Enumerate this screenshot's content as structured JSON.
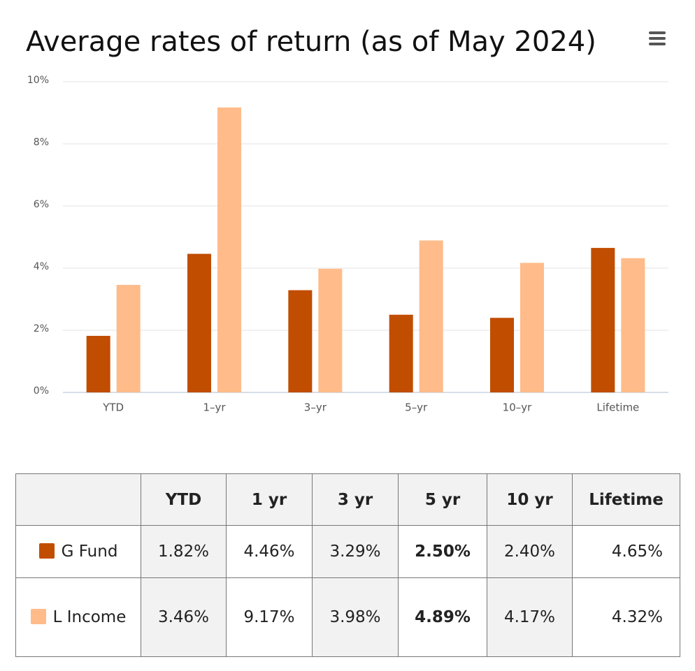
{
  "chart_data": {
    "type": "bar",
    "title": "Average rates of return (as of May 2024)",
    "categories": [
      "YTD",
      "1–yr",
      "3–yr",
      "5–yr",
      "10–yr",
      "Lifetime"
    ],
    "series": [
      {
        "name": "G Fund",
        "color": "#c14d00",
        "values": [
          1.82,
          4.46,
          3.29,
          2.5,
          2.4,
          4.65
        ],
        "value_labels": [
          "1.82%",
          "4.46%",
          "3.29%",
          "2.50%",
          "2.40%",
          "4.65%"
        ]
      },
      {
        "name": "L Income",
        "color": "#ffbb8a",
        "values": [
          3.46,
          9.17,
          3.98,
          4.89,
          4.17,
          4.32
        ],
        "value_labels": [
          "3.46%",
          "9.17%",
          "3.98%",
          "4.89%",
          "4.17%",
          "4.32%"
        ]
      }
    ],
    "ylim": [
      0,
      10
    ],
    "yticks": [
      {
        "value": 0,
        "label": "0%"
      },
      {
        "value": 2,
        "label": "2%"
      },
      {
        "value": 4,
        "label": "4%"
      },
      {
        "value": 6,
        "label": "6%"
      },
      {
        "value": 8,
        "label": "8%"
      },
      {
        "value": 10,
        "label": "10%"
      }
    ],
    "grid": true
  },
  "table": {
    "columns": [
      "YTD",
      "1 yr",
      "3 yr",
      "5 yr",
      "10 yr",
      "Lifetime"
    ]
  }
}
